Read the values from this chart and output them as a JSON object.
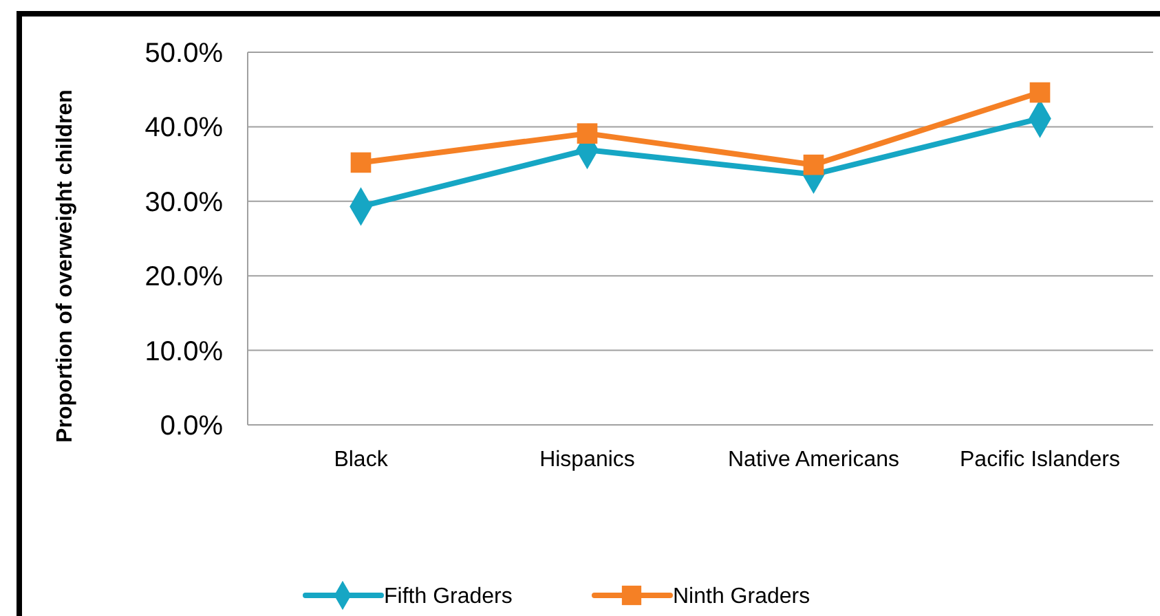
{
  "chart_data": {
    "type": "line",
    "ylabel": "Proportion of overweight children",
    "categories": [
      "Black",
      "Hispanics",
      "Native Americans",
      "Pacific Islanders"
    ],
    "series": [
      {
        "name": "Fifth Graders",
        "color": "#16a6c4",
        "marker": "diamond",
        "values": [
          29.3,
          36.9,
          33.6,
          41.1
        ]
      },
      {
        "name": "Ninth Graders",
        "color": "#f58025",
        "marker": "square",
        "values": [
          35.2,
          39.1,
          34.9,
          44.6
        ]
      }
    ],
    "ylim": [
      0,
      50
    ],
    "yticks": [
      {
        "value": 0,
        "label": "0.0%"
      },
      {
        "value": 10,
        "label": "10.0%"
      },
      {
        "value": 20,
        "label": "20.0%"
      },
      {
        "value": 30,
        "label": "30.0%"
      },
      {
        "value": 40,
        "label": "40.0%"
      },
      {
        "value": 50,
        "label": "50.0%"
      }
    ],
    "grid": "y",
    "legend": "bottom"
  }
}
